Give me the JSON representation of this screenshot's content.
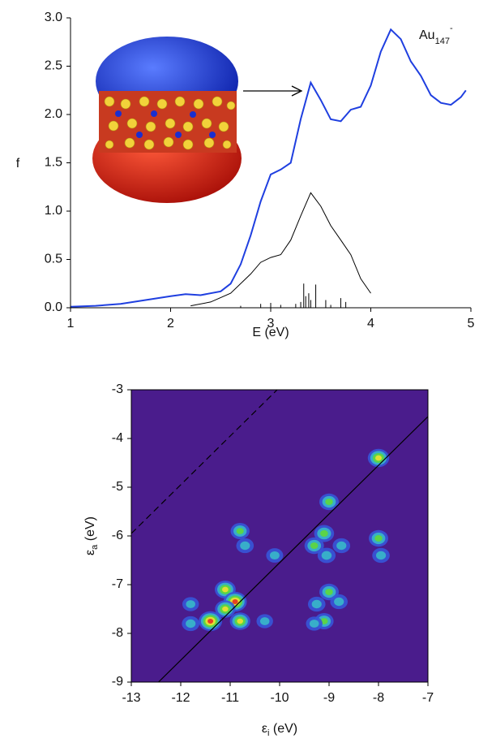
{
  "chart_data": [
    {
      "type": "line",
      "x_label": "E (eV)",
      "y_label": "f",
      "annotation": {
        "text": "Au",
        "subscript": "147",
        "superscript": "-"
      },
      "xlim": [
        1,
        5
      ],
      "ylim": [
        0,
        3
      ],
      "xticks": [
        1,
        2,
        3,
        4,
        5
      ],
      "yticks": [
        {
          "value": 0,
          "label": "0.0"
        },
        {
          "value": 0.5,
          "label": "0.5"
        },
        {
          "value": 1,
          "label": "1.0"
        },
        {
          "value": 1.5,
          "label": "1.5"
        },
        {
          "value": 2,
          "label": "2.0"
        },
        {
          "value": 2.5,
          "label": "2.5"
        },
        {
          "value": 3,
          "label": "3.0"
        }
      ],
      "series": [
        {
          "color": "#1f3fe0",
          "x": [
            1.0,
            1.25,
            1.5,
            1.75,
            2.0,
            2.15,
            2.3,
            2.5,
            2.6,
            2.7,
            2.8,
            2.9,
            3.0,
            3.1,
            3.2,
            3.3,
            3.4,
            3.5,
            3.6,
            3.7,
            3.8,
            3.9,
            4.0,
            4.1,
            4.2,
            4.3,
            4.4,
            4.5,
            4.6,
            4.7,
            4.8,
            4.9,
            4.95
          ],
          "values": [
            0.01,
            0.02,
            0.04,
            0.08,
            0.12,
            0.14,
            0.13,
            0.17,
            0.25,
            0.45,
            0.75,
            1.1,
            1.38,
            1.43,
            1.5,
            1.95,
            2.33,
            2.15,
            1.95,
            1.93,
            2.05,
            2.08,
            2.3,
            2.65,
            2.88,
            2.78,
            2.55,
            2.4,
            2.2,
            2.12,
            2.1,
            2.18,
            2.25
          ]
        },
        {
          "color": "#000000",
          "x": [
            2.2,
            2.4,
            2.6,
            2.8,
            2.9,
            3.0,
            3.1,
            3.2,
            3.3,
            3.4,
            3.5,
            3.6,
            3.7,
            3.8,
            3.9,
            4.0
          ],
          "values": [
            0.02,
            0.06,
            0.15,
            0.35,
            0.47,
            0.52,
            0.55,
            0.7,
            0.95,
            1.19,
            1.05,
            0.85,
            0.7,
            0.55,
            0.3,
            0.15
          ]
        }
      ],
      "sticks": {
        "color": "#000000",
        "x": [
          2.7,
          2.9,
          3.0,
          3.1,
          3.25,
          3.3,
          3.33,
          3.35,
          3.38,
          3.4,
          3.45,
          3.55,
          3.6,
          3.7,
          3.75
        ],
        "values": [
          0.02,
          0.04,
          0.05,
          0.03,
          0.04,
          0.06,
          0.25,
          0.12,
          0.15,
          0.08,
          0.24,
          0.08,
          0.03,
          0.1,
          0.06
        ]
      }
    },
    {
      "type": "heatmap",
      "x_label": {
        "symbol": "ε",
        "subscript": "i",
        "unit": " (eV)"
      },
      "y_label": {
        "symbol": "ε",
        "subscript": "a",
        "unit": " (eV)"
      },
      "xlim": [
        -13,
        -7
      ],
      "ylim": [
        -9,
        -3
      ],
      "xticks": [
        -13,
        -12,
        -11,
        -10,
        -9,
        -8,
        -7
      ],
      "yticks": [
        -9,
        -8,
        -7,
        -6,
        -5,
        -4,
        -3
      ],
      "background": "#4a1c8c",
      "colorscale": [
        "#3657d8",
        "#38b8c8",
        "#5fd83a",
        "#f0e030",
        "#e83020"
      ],
      "x": [
        -8.0,
        -9.0,
        -10.8,
        -10.7,
        -10.1,
        -9.1,
        -9.3,
        -9.05,
        -8.75,
        -8.0,
        -7.95,
        -11.1,
        -10.9,
        -11.1,
        -11.4,
        -10.8,
        -11.8,
        -11.8,
        -10.3,
        -9.0,
        -8.8,
        -9.25,
        -9.1,
        -9.3
      ],
      "y": [
        -4.4,
        -5.3,
        -5.9,
        -6.2,
        -6.4,
        -5.95,
        -6.2,
        -6.4,
        -6.2,
        -6.05,
        -6.4,
        -7.1,
        -7.35,
        -7.5,
        -7.75,
        -7.75,
        -7.4,
        -7.8,
        -7.75,
        -7.15,
        -7.35,
        -7.4,
        -7.75,
        -7.8
      ],
      "values": [
        0.7,
        0.5,
        0.45,
        0.3,
        0.25,
        0.55,
        0.5,
        0.35,
        0.3,
        0.5,
        0.3,
        0.65,
        0.9,
        0.6,
        0.9,
        0.6,
        0.2,
        0.3,
        0.2,
        0.5,
        0.3,
        0.3,
        0.45,
        0.2
      ],
      "lines": [
        {
          "style": "dashed",
          "x": [
            -13,
            -10.05
          ],
          "y": [
            -5.95,
            -3
          ]
        },
        {
          "style": "solid",
          "x": [
            -12.45,
            -7
          ],
          "y": [
            -9,
            -3.55
          ]
        }
      ]
    }
  ]
}
